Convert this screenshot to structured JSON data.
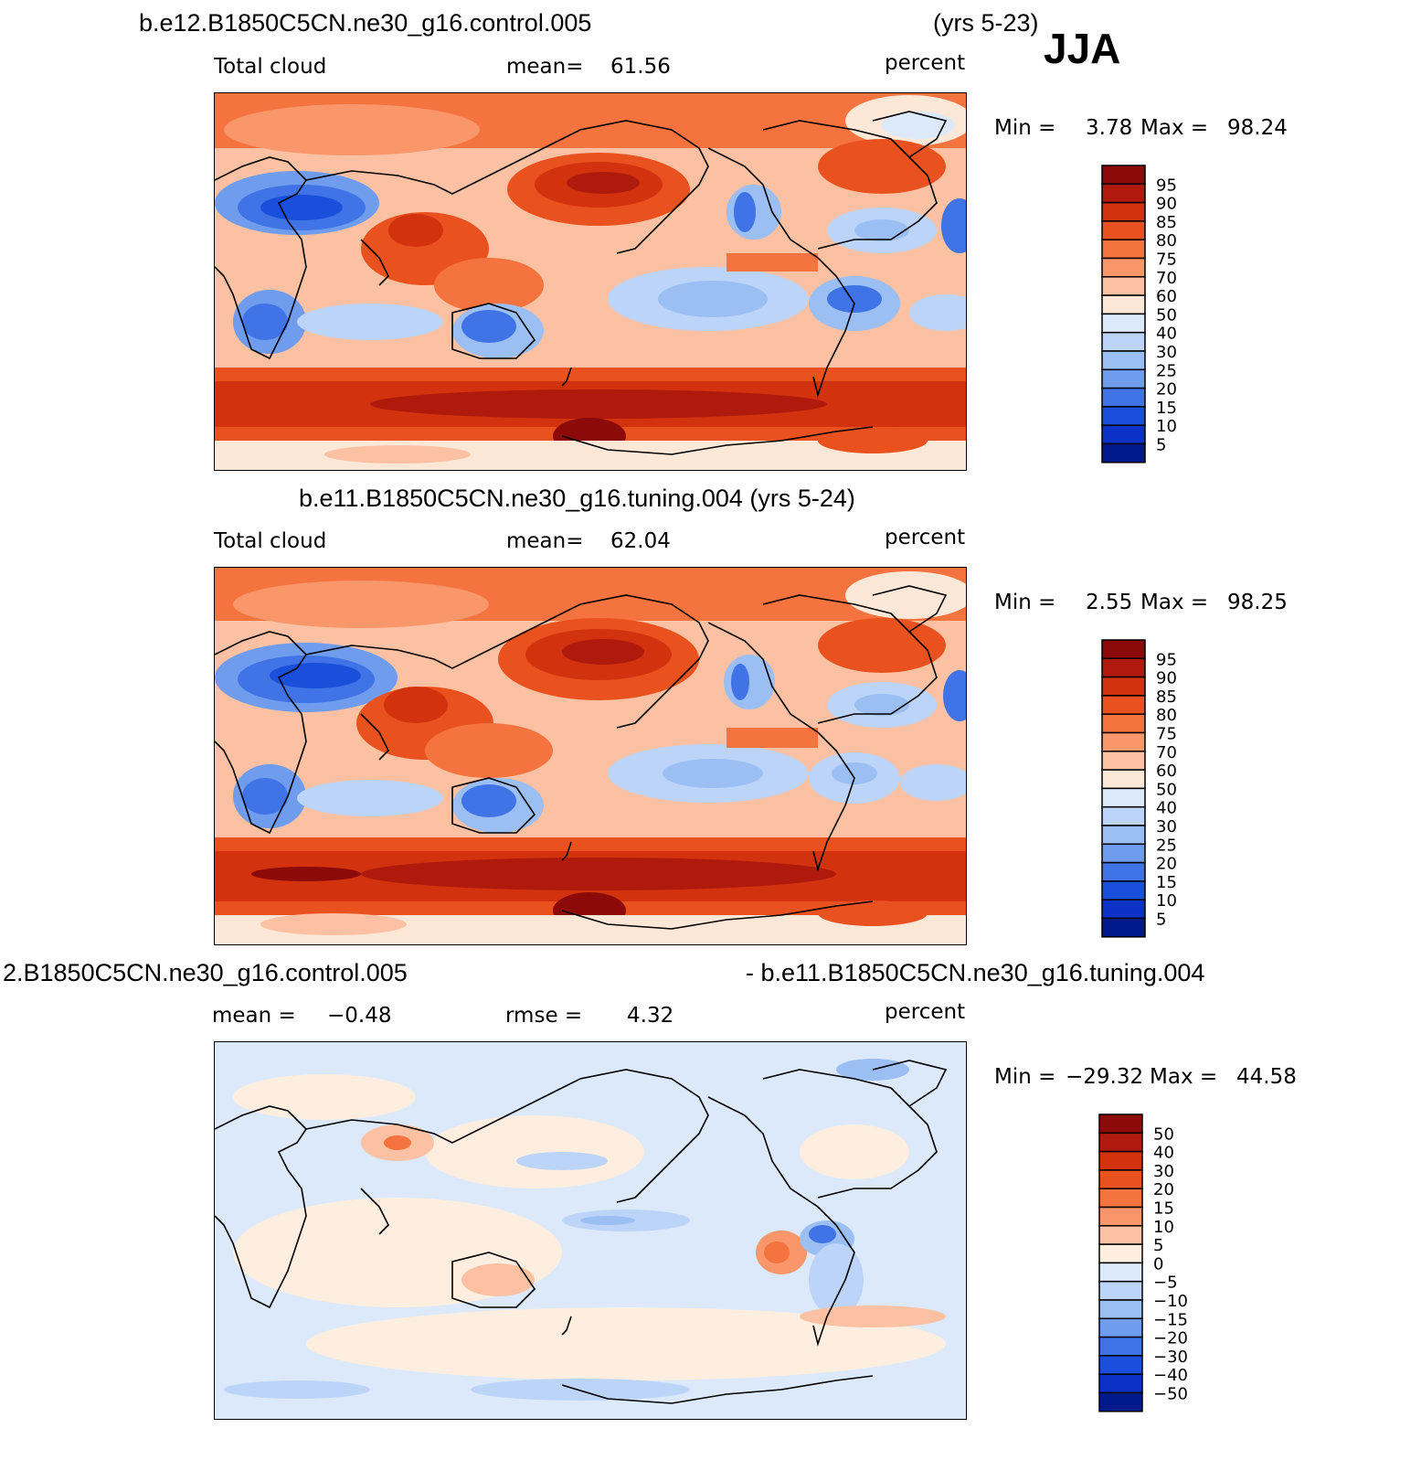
{
  "header": {
    "title_control": "b.e12.B1850C5CN.ne30_g16.control.005",
    "years_control": "(yrs 5-23)",
    "season": "JJA",
    "title_tuning": "b.e11.B1850C5CN.ne30_g16.tuning.004 (yrs 5-24)",
    "title_diff_left": "2.B1850C5CN.ne30_g16.control.005",
    "title_diff_right": "- b.e11.B1850C5CN.ne30_g16.tuning.004"
  },
  "panels": [
    {
      "field": "Total cloud",
      "stat_label": "mean=",
      "stat_value": "61.56",
      "units": "percent",
      "min_label": "Min =",
      "min_value": "3.78",
      "max_label": "Max =",
      "max_value": "98.24"
    },
    {
      "field": "Total cloud",
      "stat_label": "mean=",
      "stat_value": "62.04",
      "units": "percent",
      "min_label": "Min =",
      "min_value": "2.55",
      "max_label": "Max =",
      "max_value": "98.25"
    },
    {
      "stat_label": "mean =",
      "stat_value": "−0.48",
      "stat2_label": "rmse =",
      "stat2_value": "4.32",
      "units": "percent",
      "min_label": "Min =",
      "min_value": "−29.32",
      "max_label": "Max =",
      "max_value": "44.58"
    }
  ],
  "colorbars": {
    "absolute": {
      "labels": [
        "95",
        "90",
        "85",
        "80",
        "75",
        "70",
        "60",
        "50",
        "40",
        "30",
        "25",
        "20",
        "15",
        "10",
        "5"
      ],
      "colors": [
        "#8c0a0a",
        "#b01a0c",
        "#d2320e",
        "#e9511e",
        "#f4733f",
        "#f9966a",
        "#fcc1a3",
        "#fde8d8",
        "#dbe9fb",
        "#bcd4f8",
        "#9bbef3",
        "#6f9ced",
        "#3f73e6",
        "#1a4fdc",
        "#0a32c6",
        "#001a8c"
      ]
    },
    "difference": {
      "labels": [
        "50",
        "40",
        "30",
        "20",
        "15",
        "10",
        "5",
        "0",
        "−5",
        "−10",
        "−15",
        "−20",
        "−30",
        "−40",
        "−50"
      ],
      "colors": [
        "#8c0a0a",
        "#b01a0c",
        "#d2320e",
        "#e9511e",
        "#f4733f",
        "#f9966a",
        "#fcc1a3",
        "#fdeee0",
        "#dbe9fb",
        "#bcd4f8",
        "#9bbef3",
        "#6f9ced",
        "#3f73e6",
        "#1a4fdc",
        "#0a32c6",
        "#001a8c"
      ]
    }
  }
}
